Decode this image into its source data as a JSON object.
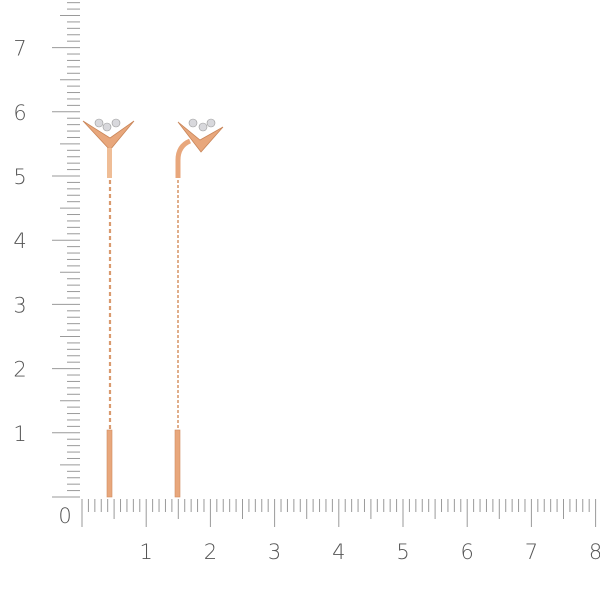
{
  "ruler": {
    "origin_label": "0",
    "x_labels": [
      "1",
      "2",
      "3",
      "4",
      "5",
      "6",
      "7",
      "8"
    ],
    "y_labels": [
      "1",
      "2",
      "3",
      "4",
      "5",
      "6",
      "7"
    ],
    "tick_color": "#9a9a9a",
    "label_color": "#555555"
  },
  "product": {
    "metal_color": "#e8a77c",
    "metal_highlight": "#f7d2b4",
    "stone_color": "#d8d8dc"
  }
}
